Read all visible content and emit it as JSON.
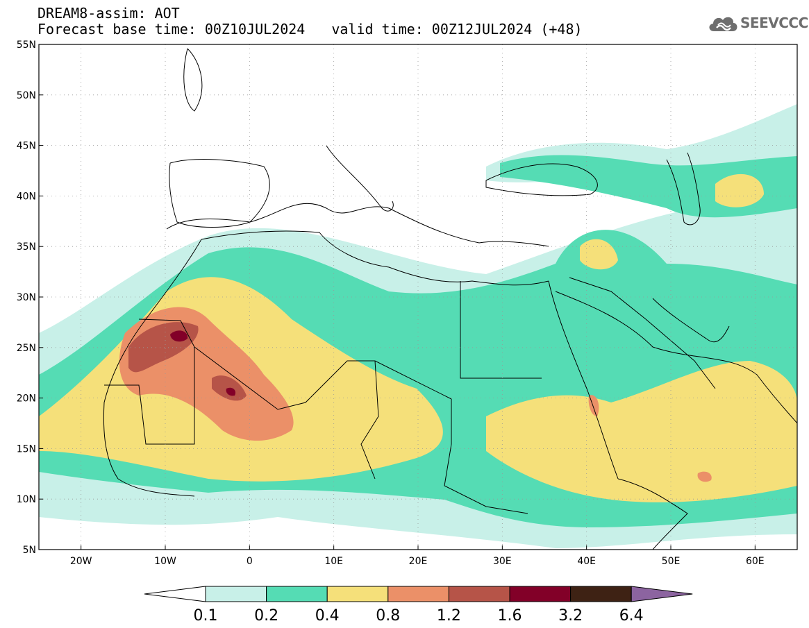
{
  "header": {
    "line1": "DREAM8-assim: AOT",
    "base_time": "Forecast base time: 00Z10JUL2024",
    "valid_time": "valid time: 00Z12JUL2024 (+48)"
  },
  "logo": {
    "text": "SEEVCCC",
    "icon": "cloud-icon",
    "color": "#6e6e6e"
  },
  "map": {
    "lon_range": [
      -25,
      65
    ],
    "lat_range": [
      5,
      55
    ],
    "lon_ticks": [
      {
        "value": -20,
        "label": "20W"
      },
      {
        "value": -10,
        "label": "10W"
      },
      {
        "value": 0,
        "label": "0"
      },
      {
        "value": 10,
        "label": "10E"
      },
      {
        "value": 20,
        "label": "20E"
      },
      {
        "value": 30,
        "label": "30E"
      },
      {
        "value": 40,
        "label": "40E"
      },
      {
        "value": 50,
        "label": "50E"
      },
      {
        "value": 60,
        "label": "60E"
      }
    ],
    "lat_ticks": [
      {
        "value": 5,
        "label": "5N"
      },
      {
        "value": 10,
        "label": "10N"
      },
      {
        "value": 15,
        "label": "15N"
      },
      {
        "value": 20,
        "label": "20N"
      },
      {
        "value": 25,
        "label": "25N"
      },
      {
        "value": 30,
        "label": "30N"
      },
      {
        "value": 35,
        "label": "35N"
      },
      {
        "value": 40,
        "label": "40N"
      },
      {
        "value": 45,
        "label": "45N"
      },
      {
        "value": 50,
        "label": "50N"
      },
      {
        "value": 55,
        "label": "55N"
      }
    ]
  },
  "colorbar": {
    "labels": [
      "0.1",
      "0.2",
      "0.4",
      "0.8",
      "1.2",
      "1.6",
      "3.2",
      "6.4"
    ],
    "colors": [
      "#ffffff",
      "#c8f0e8",
      "#55dcb4",
      "#f5e07a",
      "#eb9068",
      "#b65448",
      "#820028",
      "#3e2214",
      "#8c64a0"
    ]
  }
}
